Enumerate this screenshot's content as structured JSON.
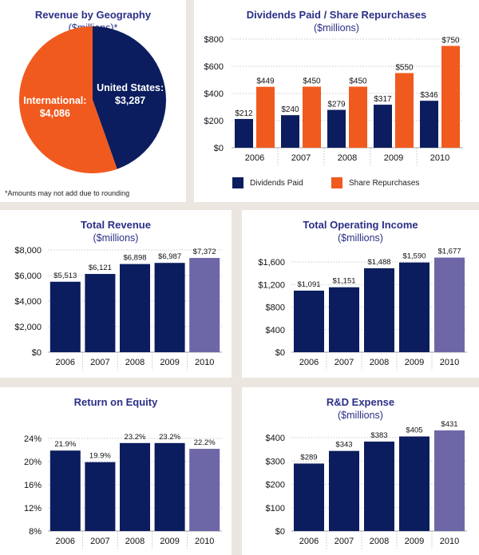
{
  "colors": {
    "navy": "#0b1d5e",
    "orange": "#f15a1f",
    "purple": "#6d67a8",
    "title": "#2b2f86",
    "grid": "#b9b9b9",
    "background": "#ebe6df"
  },
  "footnote": "*Amounts may not add due to rounding",
  "chart_data": [
    {
      "id": "geo",
      "type": "pie",
      "title": "Revenue by Geography",
      "subtitle": "($millions)*",
      "slices": [
        {
          "name": "United States:",
          "value": 3287,
          "label": "$3,287",
          "color": "#0b1d5e"
        },
        {
          "name": "International:",
          "value": 4086,
          "label": "$4,086",
          "color": "#f15a1f"
        }
      ]
    },
    {
      "id": "div",
      "type": "bar",
      "title": "Dividends Paid / Share Repurchases",
      "subtitle": "($millions)",
      "categories": [
        "2006",
        "2007",
        "2008",
        "2009",
        "2010"
      ],
      "series": [
        {
          "name": "Dividends Paid",
          "values": [
            212,
            240,
            279,
            317,
            346
          ],
          "labels": [
            "$212",
            "$240",
            "$279",
            "$317",
            "$346"
          ],
          "color": "#0b1d5e"
        },
        {
          "name": "Share Repurchases",
          "values": [
            449,
            450,
            450,
            550,
            750
          ],
          "labels": [
            "$449",
            "$450",
            "$450",
            "$550",
            "$750"
          ],
          "color": "#f15a1f"
        }
      ],
      "yticks": [
        "$0",
        "$200",
        "$400",
        "$600",
        "$800"
      ],
      "ylim": [
        0,
        800
      ],
      "grid": true
    },
    {
      "id": "rev",
      "type": "bar",
      "title": "Total Revenue",
      "subtitle": "($millions)",
      "categories": [
        "2006",
        "2007",
        "2008",
        "2009",
        "2010"
      ],
      "values": [
        5513,
        6121,
        6898,
        6987,
        7372
      ],
      "labels": [
        "$5,513",
        "$6,121",
        "$6,898",
        "$6,987",
        "$7,372"
      ],
      "colors": [
        "#0b1d5e",
        "#0b1d5e",
        "#0b1d5e",
        "#0b1d5e",
        "#6d67a8"
      ],
      "yticks": [
        "$0",
        "$2,000",
        "$4,000",
        "$6,000",
        "$8,000"
      ],
      "ylim": [
        0,
        8000
      ],
      "grid": true
    },
    {
      "id": "opi",
      "type": "bar",
      "title": "Total Operating Income",
      "subtitle": "($millions)",
      "categories": [
        "2006",
        "2007",
        "2008",
        "2009",
        "2010"
      ],
      "values": [
        1091,
        1151,
        1488,
        1590,
        1677
      ],
      "labels": [
        "$1,091",
        "$1,151",
        "$1,488",
        "$1,590",
        "$1,677"
      ],
      "colors": [
        "#0b1d5e",
        "#0b1d5e",
        "#0b1d5e",
        "#0b1d5e",
        "#6d67a8"
      ],
      "yticks": [
        "$0",
        "$400",
        "$800",
        "$1,200",
        "$1,600"
      ],
      "ylim": [
        0,
        1600
      ],
      "grid": true
    },
    {
      "id": "roe",
      "type": "bar",
      "title": "Return on Equity",
      "subtitle": "",
      "categories": [
        "2006",
        "2007",
        "2008",
        "2009",
        "2010"
      ],
      "values": [
        21.9,
        19.9,
        23.2,
        23.2,
        22.2
      ],
      "labels": [
        "21.9%",
        "19.9%",
        "23.2%",
        "23.2%",
        "22.2%"
      ],
      "colors": [
        "#0b1d5e",
        "#0b1d5e",
        "#0b1d5e",
        "#0b1d5e",
        "#6d67a8"
      ],
      "yticks": [
        "8%",
        "12%",
        "16%",
        "20%",
        "24%"
      ],
      "ylim": [
        8,
        24
      ],
      "grid": true
    },
    {
      "id": "rnd",
      "type": "bar",
      "title": "R&D Expense",
      "subtitle": "($millions)",
      "categories": [
        "2006",
        "2007",
        "2008",
        "2009",
        "2010"
      ],
      "values": [
        289,
        343,
        383,
        405,
        431
      ],
      "labels": [
        "$289",
        "$343",
        "$383",
        "$405",
        "$431"
      ],
      "colors": [
        "#0b1d5e",
        "#0b1d5e",
        "#0b1d5e",
        "#0b1d5e",
        "#6d67a8"
      ],
      "yticks": [
        "$0",
        "$100",
        "$200",
        "$300",
        "$400"
      ],
      "ylim": [
        0,
        400
      ],
      "grid": true
    }
  ]
}
